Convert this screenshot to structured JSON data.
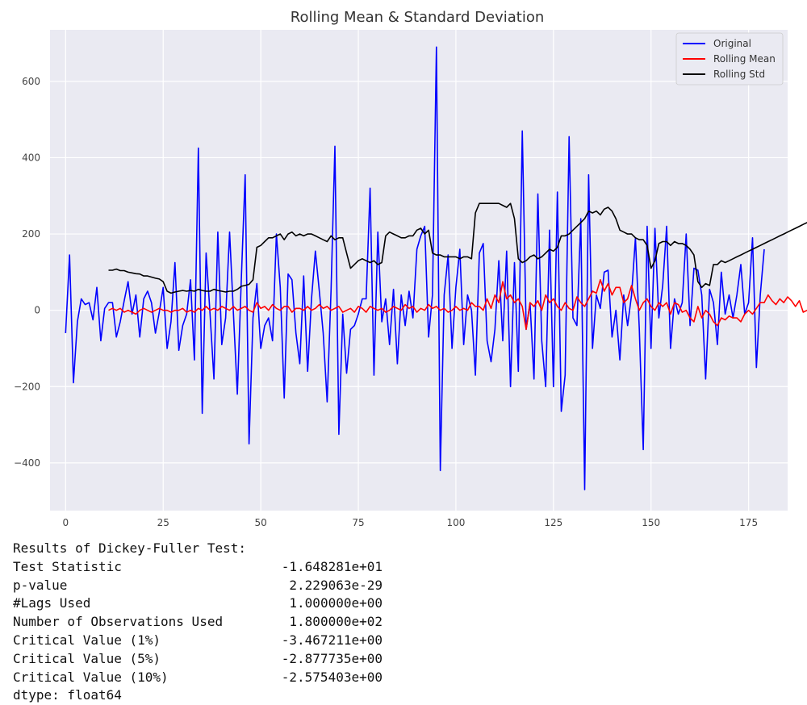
{
  "chart_data": {
    "type": "line",
    "title": "Rolling Mean & Standard Deviation",
    "xlim": [
      -4,
      185
    ],
    "ylim": [
      -525,
      735
    ],
    "xticks": [
      0,
      25,
      50,
      75,
      100,
      125,
      150,
      175
    ],
    "yticks": [
      -400,
      -200,
      0,
      200,
      400,
      600
    ],
    "grid": true,
    "legend_position": "top-right",
    "colors": {
      "plot_background": "#eaeaf2",
      "grid": "#ffffff",
      "original": "#0000ff",
      "rolling_mean": "#ff0000",
      "rolling_std": "#000000"
    },
    "series": [
      {
        "name": "Original",
        "x_start": 0,
        "values": [
          -60,
          145,
          -190,
          -30,
          30,
          15,
          20,
          -25,
          60,
          -80,
          5,
          20,
          20,
          -70,
          -30,
          25,
          75,
          -10,
          40,
          -70,
          30,
          50,
          20,
          -60,
          -5,
          60,
          -100,
          -30,
          125,
          -105,
          -40,
          -10,
          80,
          -130,
          425,
          -270,
          150,
          -10,
          -180,
          205,
          -90,
          -20,
          205,
          -10,
          -220,
          80,
          355,
          -350,
          -20,
          70,
          -100,
          -40,
          -20,
          -80,
          200,
          60,
          -230,
          95,
          80,
          -60,
          -140,
          90,
          -160,
          30,
          155,
          50,
          -60,
          -240,
          50,
          430,
          -325,
          -10,
          -165,
          -50,
          -40,
          -10,
          30,
          30,
          320,
          -170,
          205,
          -30,
          30,
          -90,
          55,
          -140,
          40,
          -40,
          50,
          -20,
          160,
          195,
          220,
          -70,
          40,
          690,
          -420,
          40,
          145,
          -100,
          60,
          160,
          -90,
          40,
          0,
          -170,
          150,
          175,
          -80,
          -135,
          -50,
          130,
          -80,
          155,
          -200,
          125,
          -160,
          470,
          -50,
          20,
          -180,
          305,
          -80,
          -200,
          210,
          -200,
          310,
          -265,
          -170,
          455,
          -20,
          -40,
          240,
          -470,
          355,
          -100,
          40,
          5,
          100,
          105,
          -70,
          0,
          -130,
          40,
          -40,
          40,
          190,
          -50,
          -365,
          220,
          -100,
          215,
          -20,
          65,
          220,
          -100,
          30,
          -10,
          20,
          200,
          -40,
          110,
          105,
          40,
          -180,
          55,
          20,
          -90,
          100,
          -10,
          40,
          -20,
          40,
          120,
          -10,
          20,
          190,
          -150,
          40,
          160
        ]
      },
      {
        "name": "Rolling Mean",
        "x_start": 11,
        "values": [
          0,
          5,
          0,
          5,
          -5,
          0,
          -5,
          -10,
          0,
          5,
          0,
          -5,
          0,
          5,
          0,
          0,
          -5,
          0,
          0,
          5,
          -5,
          0,
          -5,
          5,
          0,
          10,
          0,
          5,
          0,
          10,
          5,
          0,
          10,
          0,
          5,
          10,
          0,
          -5,
          20,
          5,
          10,
          0,
          15,
          5,
          0,
          10,
          10,
          -5,
          5,
          5,
          0,
          10,
          0,
          5,
          15,
          5,
          10,
          0,
          5,
          10,
          -5,
          0,
          5,
          -5,
          10,
          5,
          -5,
          10,
          5,
          0,
          5,
          -5,
          0,
          10,
          5,
          0,
          15,
          5,
          10,
          -5,
          5,
          0,
          15,
          5,
          10,
          0,
          5,
          -5,
          0,
          10,
          0,
          5,
          0,
          20,
          10,
          10,
          0,
          30,
          5,
          40,
          20,
          75,
          30,
          40,
          20,
          30,
          10,
          -50,
          20,
          10,
          25,
          0,
          40,
          20,
          30,
          10,
          0,
          20,
          5,
          0,
          35,
          20,
          10,
          30,
          50,
          45,
          80,
          50,
          70,
          40,
          60,
          60,
          20,
          30,
          65,
          30,
          0,
          20,
          30,
          10,
          0,
          20,
          10,
          20,
          -10,
          20,
          15,
          -5,
          0,
          -20,
          -30,
          10,
          -20,
          0,
          -10,
          -30,
          -40,
          -20,
          -25,
          -15,
          -20,
          -20,
          -30,
          -10,
          0,
          -10,
          5,
          20,
          20,
          40,
          25,
          15,
          30,
          20,
          35,
          25,
          10,
          25,
          -5,
          0
        ]
      },
      {
        "name": "Rolling Std",
        "x_start": 11,
        "values": [
          105,
          105,
          108,
          104,
          104,
          100,
          98,
          96,
          95,
          90,
          90,
          87,
          84,
          82,
          75,
          50,
          45,
          48,
          50,
          52,
          50,
          52,
          50,
          55,
          52,
          50,
          50,
          55,
          52,
          50,
          48,
          50,
          50,
          55,
          63,
          65,
          68,
          80,
          165,
          170,
          180,
          190,
          190,
          195,
          200,
          185,
          200,
          205,
          195,
          200,
          195,
          200,
          200,
          195,
          190,
          185,
          180,
          195,
          185,
          190,
          190,
          150,
          110,
          120,
          130,
          135,
          130,
          125,
          130,
          120,
          125,
          195,
          205,
          200,
          195,
          190,
          190,
          195,
          195,
          210,
          215,
          200,
          210,
          150,
          145,
          145,
          140,
          140,
          140,
          140,
          135,
          140,
          140,
          135,
          255,
          280,
          280,
          280,
          280,
          280,
          280,
          275,
          270,
          280,
          240,
          135,
          125,
          130,
          140,
          145,
          135,
          140,
          150,
          160,
          155,
          165,
          195,
          195,
          200,
          210,
          220,
          230,
          240,
          260,
          255,
          260,
          250,
          265,
          270,
          260,
          240,
          210,
          205,
          200,
          200,
          190,
          185,
          185,
          170,
          110,
          130,
          175,
          180,
          180,
          170,
          180,
          175,
          175,
          170,
          160,
          145,
          75,
          60,
          70,
          65,
          120,
          120,
          130,
          125,
          130,
          135,
          140,
          145,
          150,
          155,
          160,
          165,
          170,
          175,
          180,
          185,
          190,
          195,
          200,
          205,
          210,
          215,
          220,
          225,
          230
        ]
      }
    ]
  },
  "output": {
    "header": "Results of Dickey-Fuller Test:",
    "rows": [
      {
        "label": "Test Statistic",
        "value": "-1.648281e+01"
      },
      {
        "label": "p-value",
        "value": "2.229063e-29"
      },
      {
        "label": "#Lags Used",
        "value": "1.000000e+00"
      },
      {
        "label": "Number of Observations Used",
        "value": "1.800000e+02"
      },
      {
        "label": "Critical Value (1%)",
        "value": "-3.467211e+00"
      },
      {
        "label": "Critical Value (5%)",
        "value": "-2.877735e+00"
      },
      {
        "label": "Critical Value (10%)",
        "value": "-2.575403e+00"
      }
    ],
    "dtype": "dtype: float64"
  }
}
